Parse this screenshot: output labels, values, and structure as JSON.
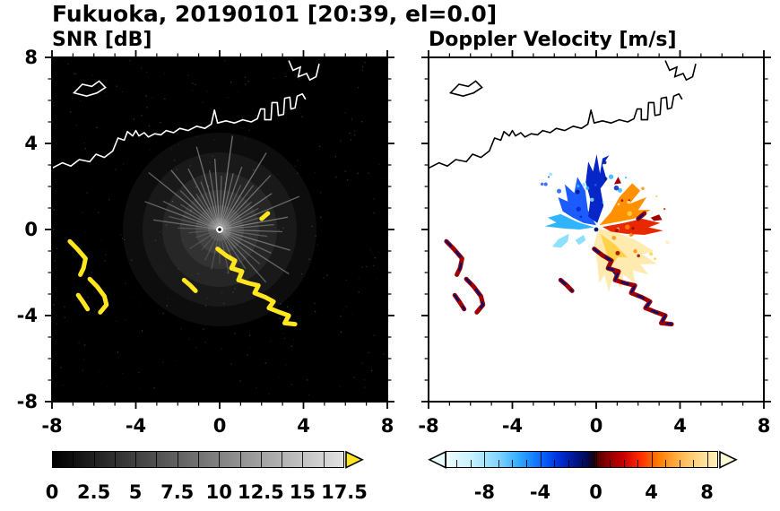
{
  "title": "Fukuoka, 20190101 [20:39, el=0.0]",
  "panels": {
    "snr": {
      "label": "SNR [dB]"
    },
    "velocity": {
      "label": "Doppler Velocity [m/s]"
    }
  },
  "axes": {
    "x_tick_labels": [
      "-8",
      "-4",
      "0",
      "4",
      "8"
    ],
    "x_tick_values": [
      -8,
      -4,
      0,
      4,
      8
    ],
    "y_tick_labels": [
      "8",
      "4",
      "0",
      "-4",
      "-8"
    ],
    "y_tick_values": [
      8,
      4,
      0,
      -4,
      -8
    ]
  },
  "colorbars": {
    "snr": {
      "tick_labels": [
        "0",
        "2.5",
        "5",
        "7.5",
        "10",
        "12.5",
        "15",
        "17.5"
      ],
      "tick_values": [
        0,
        2.5,
        5,
        7.5,
        10,
        12.5,
        15,
        17.5
      ],
      "min": 0,
      "max": 17.5,
      "minor_step": 1.25,
      "start_color": "#000000",
      "end_color": "#e2e2e2",
      "arrow_color": "#ffe61e"
    },
    "velocity": {
      "tick_labels": [
        "-8",
        "-4",
        "0",
        "4",
        "8"
      ],
      "tick_values": [
        -8,
        -4,
        0,
        4,
        8
      ],
      "min": -10.8,
      "max": 8.8,
      "minor_step": 1,
      "stops": [
        [
          -10.8,
          "#eefcff"
        ],
        [
          -9,
          "#c8f2ff"
        ],
        [
          -7,
          "#7fd4ff"
        ],
        [
          -5.5,
          "#2fa8ff"
        ],
        [
          -4,
          "#0a6bff"
        ],
        [
          -2.8,
          "#0033e0"
        ],
        [
          -1.6,
          "#001896"
        ],
        [
          -0.6,
          "#000a50"
        ],
        [
          -0.05,
          "#200000"
        ],
        [
          0.05,
          "#4a0000"
        ],
        [
          0.8,
          "#8b0000"
        ],
        [
          2,
          "#c80000"
        ],
        [
          3.2,
          "#ff2a00"
        ],
        [
          4.5,
          "#ff7a00"
        ],
        [
          6,
          "#ffb347"
        ],
        [
          7.5,
          "#ffd98c"
        ],
        [
          8.8,
          "#ffeebc"
        ]
      ],
      "left_arrow_color": "#eaffff",
      "right_arrow_color": "#fffbd6"
    }
  },
  "chart_data": {
    "type": "heatmap",
    "subtype": "radar-ppi-pair",
    "title": "Fukuoka, 20190101 [20:39, el=0.0]",
    "x_range": [
      -8,
      8
    ],
    "y_range": [
      -8,
      8
    ],
    "x_ticks": [
      -8,
      -4,
      0,
      4,
      8
    ],
    "y_ticks": [
      -8,
      -4,
      0,
      4,
      8
    ],
    "radar_center": [
      0,
      0
    ],
    "panels": [
      {
        "name": "SNR [dB]",
        "background": "#000000",
        "coast_color": "#ffffff",
        "value_range": [
          0,
          17.5
        ],
        "units": "dB"
      },
      {
        "name": "Doppler Velocity [m/s]",
        "background": "#ffffff",
        "coast_color": "#000000",
        "value_range": [
          -8,
          8
        ],
        "units": "m/s"
      }
    ],
    "coastlines": {
      "main": [
        [
          -8,
          2.85
        ],
        [
          -7.5,
          3.1
        ],
        [
          -7.1,
          2.95
        ],
        [
          -6.7,
          3.25
        ],
        [
          -6.2,
          3.15
        ],
        [
          -5.9,
          3.5
        ],
        [
          -5.5,
          3.35
        ],
        [
          -5.1,
          3.65
        ],
        [
          -4.85,
          4.25
        ],
        [
          -4.55,
          4.15
        ],
        [
          -4.4,
          4.55
        ],
        [
          -4.15,
          4.35
        ],
        [
          -4.0,
          4.6
        ],
        [
          -3.85,
          4.35
        ],
        [
          -3.6,
          4.5
        ],
        [
          -3.4,
          4.3
        ],
        [
          -3.1,
          4.45
        ],
        [
          -2.8,
          4.4
        ],
        [
          -2.55,
          4.6
        ],
        [
          -2.2,
          4.5
        ],
        [
          -1.9,
          4.7
        ],
        [
          -1.5,
          4.6
        ],
        [
          -1.1,
          4.8
        ],
        [
          -0.7,
          4.7
        ],
        [
          -0.4,
          4.9
        ],
        [
          -0.25,
          5.55
        ],
        [
          -0.1,
          4.95
        ],
        [
          0.3,
          5.05
        ],
        [
          0.7,
          4.95
        ],
        [
          1.1,
          5.1
        ],
        [
          1.5,
          5.0
        ],
        [
          1.8,
          5.15
        ],
        [
          1.95,
          5.6
        ],
        [
          2.15,
          5.6
        ],
        [
          2.15,
          5.1
        ],
        [
          2.45,
          5.1
        ],
        [
          2.5,
          5.9
        ],
        [
          2.75,
          5.9
        ],
        [
          2.8,
          5.3
        ],
        [
          3.05,
          5.35
        ],
        [
          3.1,
          6.1
        ],
        [
          3.35,
          6.15
        ],
        [
          3.4,
          5.6
        ],
        [
          3.6,
          5.65
        ],
        [
          3.7,
          6.2
        ],
        [
          3.95,
          6.3
        ],
        [
          4.1,
          6.05
        ]
      ],
      "island": [
        [
          -6.95,
          6.35
        ],
        [
          -6.55,
          6.75
        ],
        [
          -6.1,
          6.65
        ],
        [
          -5.75,
          6.9
        ],
        [
          -5.45,
          6.6
        ],
        [
          -5.85,
          6.35
        ],
        [
          -6.35,
          6.2
        ]
      ],
      "topright": [
        [
          3.3,
          7.85
        ],
        [
          3.5,
          7.4
        ],
        [
          3.85,
          7.55
        ],
        [
          3.75,
          7.1
        ],
        [
          4.15,
          7.25
        ],
        [
          4.3,
          6.95
        ],
        [
          4.6,
          7.1
        ],
        [
          4.75,
          7.7
        ]
      ]
    },
    "snr_rays": [
      [
        5,
        2.6,
        0.35
      ],
      [
        10,
        3.3,
        0.5
      ],
      [
        16,
        2.3,
        0.3
      ],
      [
        22,
        4.1,
        0.45
      ],
      [
        28,
        2.1,
        0.3
      ],
      [
        34,
        3.0,
        0.5
      ],
      [
        40,
        2.0,
        0.3
      ],
      [
        46,
        3.5,
        0.45
      ],
      [
        52,
        2.6,
        0.35
      ],
      [
        58,
        4.2,
        0.5
      ],
      [
        64,
        2.3,
        0.3
      ],
      [
        70,
        3.1,
        0.45
      ],
      [
        76,
        2.7,
        0.4
      ],
      [
        82,
        4.4,
        0.55
      ],
      [
        88,
        2.5,
        0.35
      ],
      [
        94,
        3.3,
        0.5
      ],
      [
        100,
        2.8,
        0.4
      ],
      [
        106,
        4.0,
        0.5
      ],
      [
        112,
        2.4,
        0.35
      ],
      [
        118,
        3.2,
        0.45
      ],
      [
        124,
        2.0,
        0.3
      ],
      [
        130,
        3.6,
        0.5
      ],
      [
        136,
        2.6,
        0.35
      ],
      [
        142,
        4.3,
        0.45
      ],
      [
        148,
        2.2,
        0.3
      ],
      [
        154,
        3.0,
        0.4
      ],
      [
        160,
        3.8,
        0.45
      ],
      [
        166,
        2.5,
        0.3
      ],
      [
        172,
        3.2,
        0.4
      ],
      [
        178,
        2.0,
        0.25
      ],
      [
        186,
        1.5,
        0.2
      ],
      [
        198,
        1.2,
        0.15
      ],
      [
        212,
        1.7,
        0.18
      ],
      [
        228,
        1.3,
        0.15
      ],
      [
        244,
        1.6,
        0.18
      ],
      [
        258,
        1.9,
        0.2
      ],
      [
        270,
        1.6,
        0.18
      ],
      [
        282,
        2.1,
        0.22
      ],
      [
        294,
        2.6,
        0.28
      ],
      [
        304,
        2.2,
        0.3
      ],
      [
        312,
        3.3,
        0.4
      ],
      [
        320,
        2.5,
        0.32
      ],
      [
        328,
        3.9,
        0.45
      ],
      [
        336,
        2.7,
        0.38
      ],
      [
        344,
        3.5,
        0.45
      ],
      [
        352,
        2.3,
        0.3
      ],
      [
        358,
        3.0,
        0.4
      ]
    ],
    "echo_patches": [
      [
        [
          -7.15,
          -0.55
        ],
        [
          -6.8,
          -0.9
        ],
        [
          -6.4,
          -1.35
        ],
        [
          -6.5,
          -1.8
        ],
        [
          -6.65,
          -2.1
        ]
      ],
      [
        [
          -6.2,
          -2.3
        ],
        [
          -5.85,
          -2.65
        ],
        [
          -5.5,
          -3.1
        ],
        [
          -5.4,
          -3.5
        ],
        [
          -5.7,
          -3.85
        ]
      ],
      [
        [
          -6.75,
          -3.05
        ],
        [
          -6.5,
          -3.4
        ],
        [
          -6.3,
          -3.7
        ]
      ],
      [
        [
          -1.7,
          -2.35
        ],
        [
          -1.4,
          -2.6
        ],
        [
          -1.15,
          -2.85
        ]
      ],
      [
        [
          -0.1,
          -0.9
        ],
        [
          0.3,
          -1.2
        ],
        [
          0.73,
          -1.45
        ],
        [
          0.56,
          -1.8
        ],
        [
          1.07,
          -1.95
        ],
        [
          0.9,
          -2.35
        ],
        [
          1.4,
          -2.5
        ],
        [
          1.85,
          -2.6
        ],
        [
          1.67,
          -2.95
        ],
        [
          2.18,
          -3.15
        ],
        [
          2.57,
          -3.35
        ],
        [
          2.35,
          -3.65
        ],
        [
          2.87,
          -3.85
        ],
        [
          3.3,
          -4.0
        ],
        [
          3.1,
          -4.35
        ],
        [
          3.6,
          -4.4
        ]
      ],
      [
        [
          2.0,
          0.5
        ],
        [
          2.3,
          0.75
        ]
      ]
    ],
    "patch_colors": {
      "snr": "#ffe61e",
      "velocity_main": "#a00000",
      "velocity_dash": "#001070"
    },
    "velocity_lobes": [
      {
        "color": "#ffeab0",
        "pts": [
          [
            0.1,
            0.05
          ],
          [
            1.0,
            -0.15
          ],
          [
            1.9,
            -0.5
          ],
          [
            2.75,
            -1.0
          ],
          [
            2.2,
            -1.15
          ],
          [
            2.9,
            -1.6
          ],
          [
            2.1,
            -1.62
          ],
          [
            2.5,
            -2.1
          ],
          [
            1.75,
            -1.9
          ],
          [
            1.85,
            -2.5
          ],
          [
            1.3,
            -2.1
          ],
          [
            1.2,
            -2.75
          ],
          [
            0.8,
            -2.2
          ],
          [
            0.6,
            -2.9
          ],
          [
            0.4,
            -2.1
          ],
          [
            0.15,
            -2.5
          ],
          [
            0.05,
            -1.5
          ],
          [
            -0.1,
            -0.7
          ]
        ]
      },
      {
        "color": "#ffd24a",
        "pts": [
          [
            0.2,
            -0.2
          ],
          [
            0.9,
            -0.7
          ],
          [
            1.5,
            -1.3
          ],
          [
            1.05,
            -1.28
          ],
          [
            0.7,
            -1.7
          ],
          [
            0.5,
            -1.1
          ]
        ]
      },
      {
        "color": "#ff9100",
        "pts": [
          [
            0.15,
            0.2
          ],
          [
            0.7,
            0.8
          ],
          [
            1.1,
            1.5
          ],
          [
            1.72,
            2.15
          ],
          [
            2.1,
            1.8
          ],
          [
            1.6,
            1.2
          ],
          [
            2.4,
            1.5
          ],
          [
            2.0,
            0.9
          ],
          [
            2.6,
            0.92
          ],
          [
            1.8,
            0.5
          ],
          [
            1.0,
            0.35
          ]
        ]
      },
      {
        "color": "#e82800",
        "pts": [
          [
            0.3,
            0.12
          ],
          [
            1.3,
            0.3
          ],
          [
            2.2,
            0.5
          ],
          [
            3.05,
            0.3
          ],
          [
            2.5,
            0.1
          ],
          [
            3.2,
            -0.05
          ],
          [
            2.3,
            -0.25
          ],
          [
            1.4,
            -0.2
          ],
          [
            0.7,
            -0.1
          ]
        ]
      },
      {
        "color": "#a00000",
        "pts": [
          [
            2.6,
            0.55
          ],
          [
            3.0,
            0.7
          ],
          [
            3.15,
            0.45
          ],
          [
            2.75,
            0.4
          ]
        ]
      },
      {
        "color": "#2fb4ff",
        "pts": [
          [
            -0.1,
            0.1
          ],
          [
            -0.9,
            0.35
          ],
          [
            -1.7,
            0.72
          ],
          [
            -2.3,
            0.55
          ],
          [
            -1.9,
            0.32
          ],
          [
            -2.45,
            0.15
          ],
          [
            -1.6,
            0.05
          ],
          [
            -0.8,
            0.0
          ]
        ]
      },
      {
        "color": "#1b5bff",
        "pts": [
          [
            0,
            0.2
          ],
          [
            -0.4,
            0.9
          ],
          [
            -0.52,
            1.8
          ],
          [
            -0.9,
            2.45
          ],
          [
            -1.05,
            1.7
          ],
          [
            -1.5,
            2.1
          ],
          [
            -1.35,
            1.3
          ],
          [
            -1.82,
            1.5
          ],
          [
            -1.6,
            0.85
          ],
          [
            -1.12,
            0.55
          ],
          [
            -0.6,
            0.3
          ]
        ]
      },
      {
        "color": "#0626c8",
        "pts": [
          [
            0.05,
            0.3
          ],
          [
            0.35,
            1.1
          ],
          [
            0.2,
            1.9
          ],
          [
            0.5,
            2.3
          ],
          [
            0.3,
            3.0
          ],
          [
            0.62,
            3.45
          ],
          [
            0.3,
            3.3
          ],
          [
            0.18,
            2.6
          ],
          [
            0.02,
            3.5
          ],
          [
            -0.15,
            2.7
          ],
          [
            -0.38,
            3.15
          ],
          [
            -0.5,
            2.2
          ],
          [
            -0.28,
            1.4
          ],
          [
            -0.38,
            0.6
          ]
        ]
      },
      {
        "color": "#8fe0ff",
        "pts": [
          [
            -1.3,
            -0.2
          ],
          [
            -1.8,
            -0.45
          ],
          [
            -2.1,
            -0.8
          ],
          [
            -1.68,
            -0.85
          ],
          [
            -1.35,
            -0.55
          ]
        ]
      },
      {
        "color": "#8fe0ff",
        "pts": [
          [
            -0.6,
            -0.25
          ],
          [
            -1.0,
            -0.5
          ],
          [
            -0.82,
            -0.72
          ],
          [
            -0.5,
            -0.5
          ]
        ]
      },
      {
        "color": "#001a80",
        "pts": [
          [
            0.75,
            -1.95
          ],
          [
            0.95,
            -2.2
          ],
          [
            1.12,
            -1.95
          ]
        ]
      },
      {
        "color": "#a00000",
        "pts": [
          [
            0.85,
            2.1
          ],
          [
            1.05,
            2.45
          ],
          [
            1.2,
            2.15
          ]
        ]
      }
    ]
  }
}
